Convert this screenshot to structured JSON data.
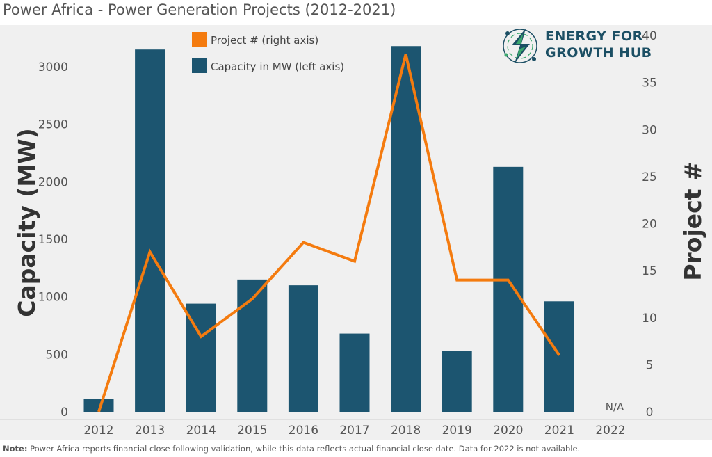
{
  "title": "Power Africa - Power Generation Projects (2012-2021)",
  "note_label": "Note:",
  "note_text": " Power Africa reports financial close following validation, while this data reflects actual financial close date. Data for 2022 is not available.",
  "brand": {
    "line1": "ENERGY FOR",
    "line2": "GROWTH HUB"
  },
  "colors": {
    "bar": "#1c5570",
    "line": "#f47b0f",
    "plot_bg": "#f0f0f0",
    "axis_text": "#555555"
  },
  "chart_data": {
    "type": "bar",
    "categories": [
      "2012",
      "2013",
      "2014",
      "2015",
      "2016",
      "2017",
      "2018",
      "2019",
      "2020",
      "2021",
      "2022"
    ],
    "series": [
      {
        "name": "Capacity in MW (left axis)",
        "type": "bar",
        "axis": "left",
        "values": [
          110,
          3150,
          940,
          1150,
          1100,
          680,
          3180,
          530,
          2130,
          960,
          null
        ]
      },
      {
        "name": "Project # (right axis)",
        "type": "line",
        "axis": "right",
        "values": [
          0,
          17,
          8,
          12,
          18,
          16,
          38,
          14,
          14,
          6,
          null
        ]
      }
    ],
    "ylabel": "Capacity (MW)",
    "y2label": "Project #",
    "ylim": [
      0,
      3300
    ],
    "y2lim": [
      0,
      40
    ],
    "yticks": [
      0,
      500,
      1000,
      1500,
      2000,
      2500,
      3000
    ],
    "y2ticks": [
      0,
      5,
      10,
      15,
      20,
      25,
      30,
      35,
      40
    ],
    "annotations": [
      {
        "category": "2022",
        "text": "N/A"
      }
    ],
    "legend_position": "top-center",
    "grid": false
  }
}
